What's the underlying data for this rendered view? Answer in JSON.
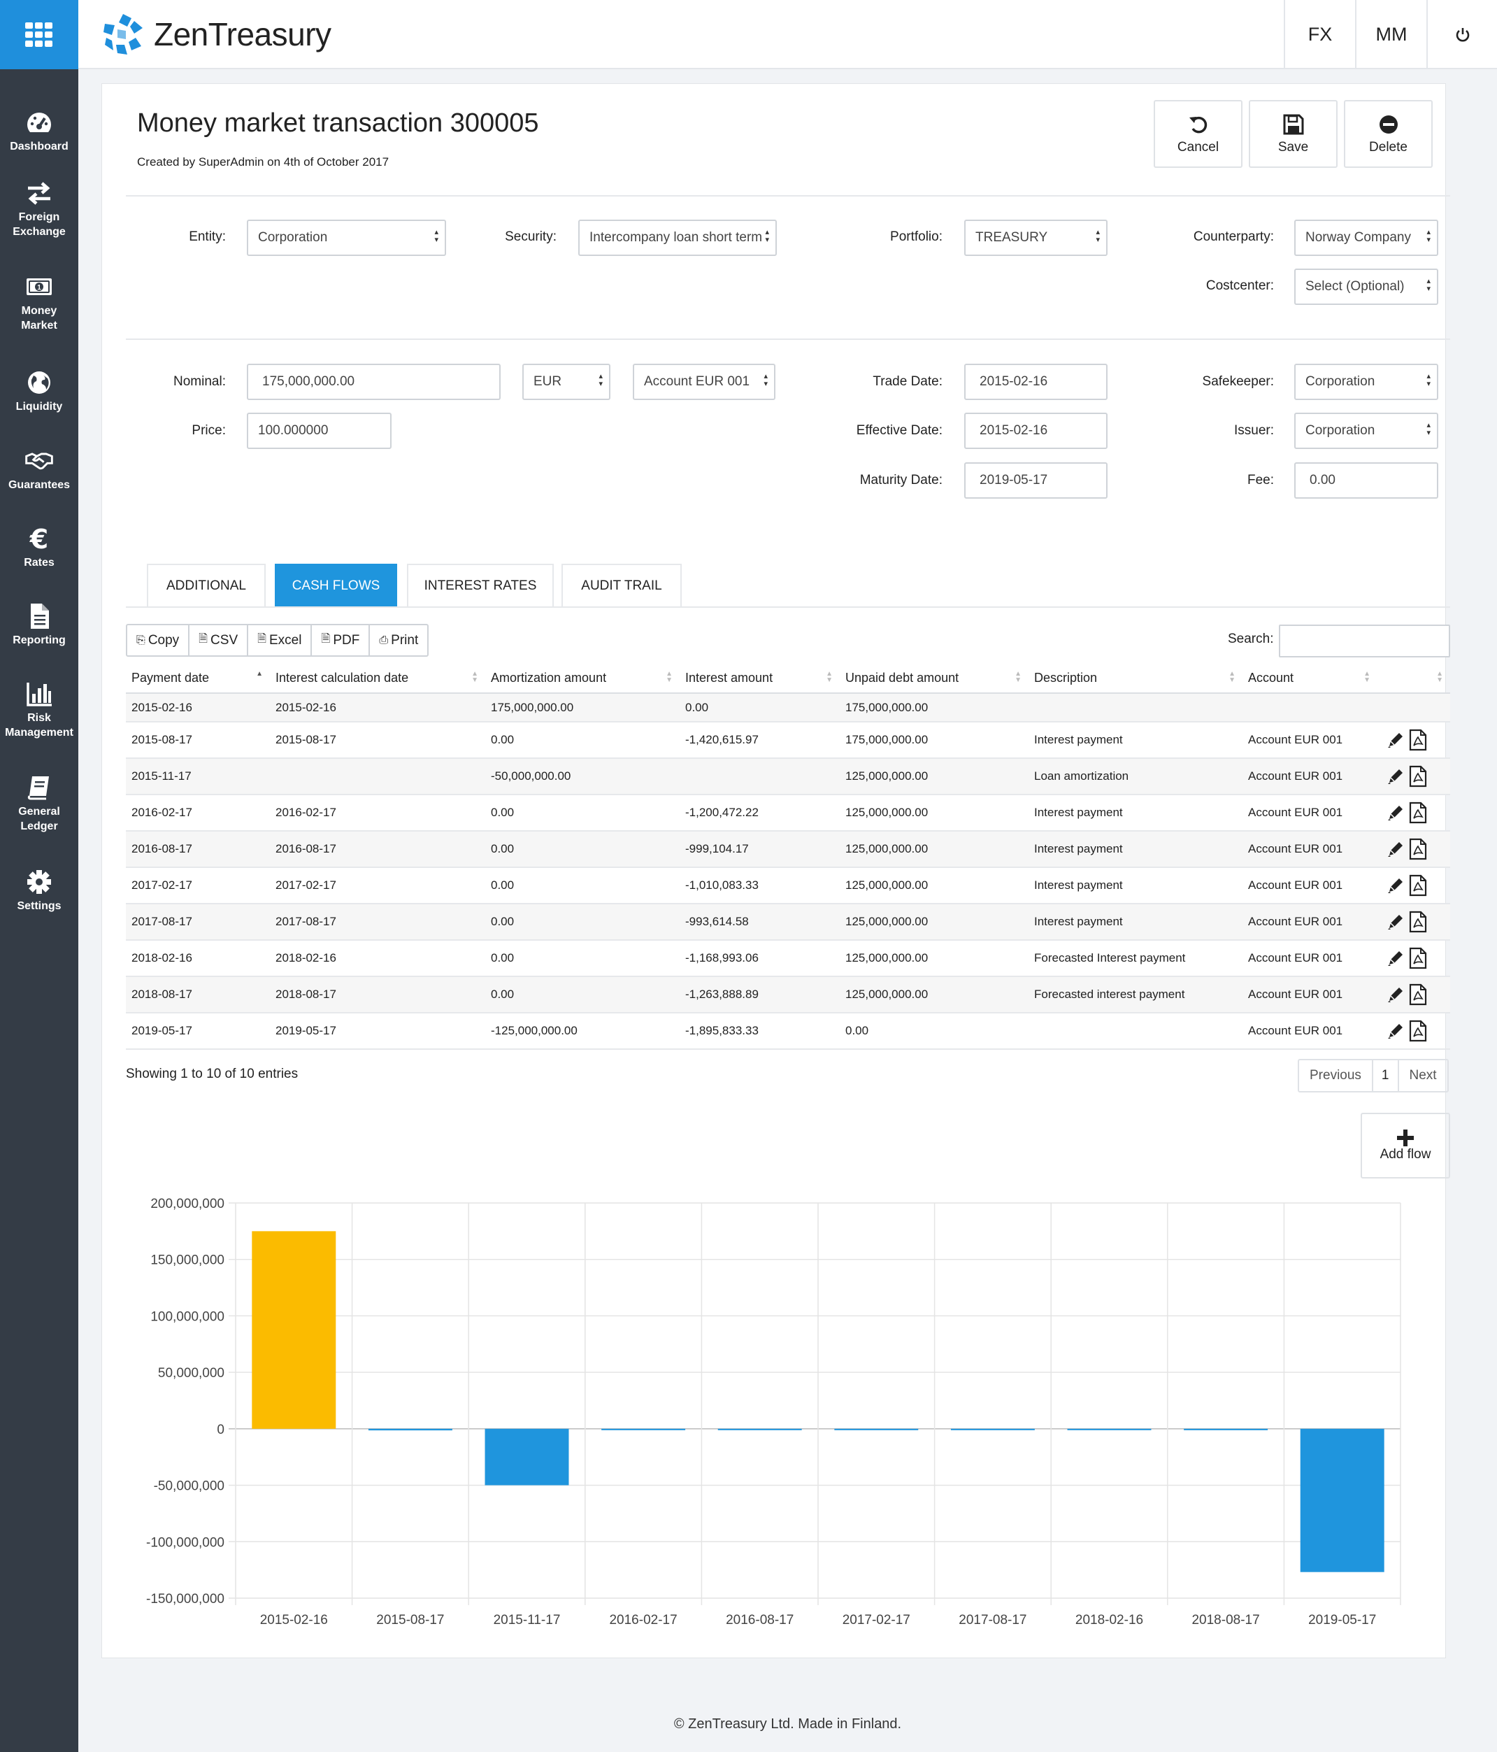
{
  "app": {
    "name": "ZenTreasury",
    "brand_color": "#1f8fdc"
  },
  "topbar": {
    "fx_label": "FX",
    "mm_label": "MM",
    "power_icon": "power-icon"
  },
  "sidebar": {
    "items": [
      {
        "label": "Dashboard",
        "icon": "speedometer-icon"
      },
      {
        "label": "Foreign\nExchange",
        "icon": "exchange-arrows-icon"
      },
      {
        "label": "Money\nMarket",
        "icon": "banknote-icon"
      },
      {
        "label": "Liquidity",
        "icon": "globe-icon"
      },
      {
        "label": "Guarantees",
        "icon": "handshake-icon"
      },
      {
        "label": "Rates",
        "icon": "euro-icon"
      },
      {
        "label": "Reporting",
        "icon": "document-icon"
      },
      {
        "label": "Risk\nManagement",
        "icon": "bar-chart-icon"
      },
      {
        "label": "General\nLedger",
        "icon": "book-icon"
      },
      {
        "label": "Settings",
        "icon": "gear-icon"
      }
    ]
  },
  "header": {
    "title": "Money market transaction 300005",
    "subtitle": "Created by SuperAdmin on 4th of October 2017",
    "actions": {
      "cancel": "Cancel",
      "save": "Save",
      "delete": "Delete"
    }
  },
  "form": {
    "entity_label": "Entity:",
    "entity_value": "Corporation",
    "security_label": "Security:",
    "security_value": "Intercompany loan short term",
    "portfolio_label": "Portfolio:",
    "portfolio_value": "TREASURY",
    "counterparty_label": "Counterparty:",
    "counterparty_value": "Norway Company",
    "costcenter_label": "Costcenter:",
    "costcenter_value": "Select (Optional)",
    "nominal_label": "Nominal:",
    "nominal_value": "175,000,000.00",
    "currency_value": "EUR",
    "account_value": "Account EUR 001",
    "price_label": "Price:",
    "price_value": "100.000000",
    "trade_date_label": "Trade Date:",
    "trade_date_value": "2015-02-16",
    "effective_date_label": "Effective Date:",
    "effective_date_value": "2015-02-16",
    "maturity_date_label": "Maturity Date:",
    "maturity_date_value": "2019-05-17",
    "safekeeper_label": "Safekeeper:",
    "safekeeper_value": "Corporation",
    "issuer_label": "Issuer:",
    "issuer_value": "Corporation",
    "fee_label": "Fee:",
    "fee_value": "0.00"
  },
  "tabs": [
    {
      "label": "ADDITIONAL"
    },
    {
      "label": "CASH FLOWS",
      "active": true
    },
    {
      "label": "INTEREST RATES"
    },
    {
      "label": "AUDIT TRAIL"
    }
  ],
  "toolbar": {
    "copy": "Copy",
    "csv": "CSV",
    "excel": "Excel",
    "pdf": "PDF",
    "print": "Print",
    "search_label": "Search:"
  },
  "table": {
    "columns": [
      "Payment date",
      "Interest calculation date",
      "Amortization amount",
      "Interest amount",
      "Unpaid debt amount",
      "Description",
      "Account"
    ],
    "rows": [
      {
        "payment_date": "2015-02-16",
        "calc_date": "2015-02-16",
        "amortization": "175,000,000.00",
        "interest": "0.00",
        "unpaid": "175,000,000.00",
        "description": "",
        "account": "",
        "actions": false
      },
      {
        "payment_date": "2015-08-17",
        "calc_date": "2015-08-17",
        "amortization": "0.00",
        "interest": "-1,420,615.97",
        "unpaid": "175,000,000.00",
        "description": "Interest payment",
        "account": "Account EUR 001",
        "actions": true
      },
      {
        "payment_date": "2015-11-17",
        "calc_date": "",
        "amortization": "-50,000,000.00",
        "interest": "",
        "unpaid": "125,000,000.00",
        "description": "Loan amortization",
        "account": "Account EUR 001",
        "actions": true
      },
      {
        "payment_date": "2016-02-17",
        "calc_date": "2016-02-17",
        "amortization": "0.00",
        "interest": "-1,200,472.22",
        "unpaid": "125,000,000.00",
        "description": "Interest payment",
        "account": "Account EUR 001",
        "actions": true
      },
      {
        "payment_date": "2016-08-17",
        "calc_date": "2016-08-17",
        "amortization": "0.00",
        "interest": "-999,104.17",
        "unpaid": "125,000,000.00",
        "description": "Interest payment",
        "account": "Account EUR 001",
        "actions": true
      },
      {
        "payment_date": "2017-02-17",
        "calc_date": "2017-02-17",
        "amortization": "0.00",
        "interest": "-1,010,083.33",
        "unpaid": "125,000,000.00",
        "description": "Interest payment",
        "account": "Account EUR 001",
        "actions": true
      },
      {
        "payment_date": "2017-08-17",
        "calc_date": "2017-08-17",
        "amortization": "0.00",
        "interest": "-993,614.58",
        "unpaid": "125,000,000.00",
        "description": "Interest payment",
        "account": "Account EUR 001",
        "actions": true
      },
      {
        "payment_date": "2018-02-16",
        "calc_date": "2018-02-16",
        "amortization": "0.00",
        "interest": "-1,168,993.06",
        "unpaid": "125,000,000.00",
        "description": "Forecasted Interest payment",
        "account": "Account EUR 001",
        "actions": true
      },
      {
        "payment_date": "2018-08-17",
        "calc_date": "2018-08-17",
        "amortization": "0.00",
        "interest": "-1,263,888.89",
        "unpaid": "125,000,000.00",
        "description": "Forecasted interest payment",
        "account": "Account EUR 001",
        "actions": true
      },
      {
        "payment_date": "2019-05-17",
        "calc_date": "2019-05-17",
        "amortization": "-125,000,000.00",
        "interest": "-1,895,833.33",
        "unpaid": "0.00",
        "description": "",
        "account": "Account EUR 001",
        "actions": true
      }
    ]
  },
  "pagination": {
    "info": "Showing 1 to 10 of 10 entries",
    "previous": "Previous",
    "page": "1",
    "next": "Next"
  },
  "add_flow": {
    "label": "Add flow"
  },
  "chart_data": {
    "type": "bar",
    "categories": [
      "2015-02-16",
      "2015-08-17",
      "2015-11-17",
      "2016-02-17",
      "2016-08-17",
      "2017-02-17",
      "2017-08-17",
      "2018-02-16",
      "2018-08-17",
      "2019-05-17"
    ],
    "values": [
      175000000,
      -1420616,
      -50000000,
      -1200472,
      -999104,
      -1010083,
      -993615,
      -1168993,
      -1263889,
      -126895833
    ],
    "bar_colors": [
      "#fbbb00",
      "#1f95dd",
      "#1f95dd",
      "#1f95dd",
      "#1f95dd",
      "#1f95dd",
      "#1f95dd",
      "#1f95dd",
      "#1f95dd",
      "#1f95dd"
    ],
    "yticks": [
      "200,000,000",
      "150,000,000",
      "100,000,000",
      "50,000,000",
      "0",
      "-50,000,000",
      "-100,000,000",
      "-150,000,000"
    ],
    "ylim": [
      -150000000,
      200000000
    ],
    "grid": true
  },
  "footer": {
    "text": "© ZenTreasury Ltd. Made in Finland."
  }
}
